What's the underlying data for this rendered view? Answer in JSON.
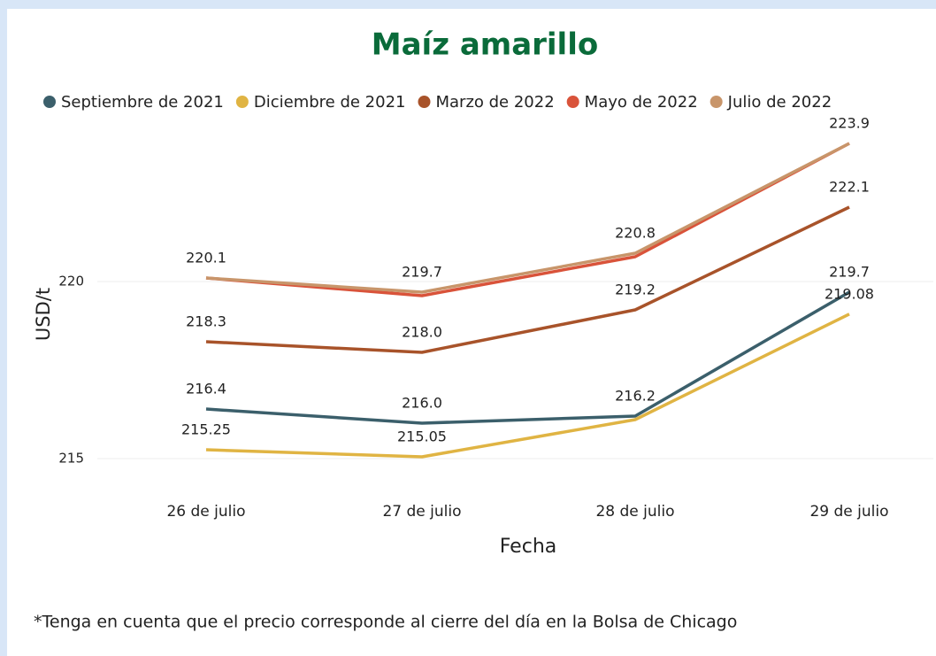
{
  "chart_data": {
    "type": "line",
    "title": "Maíz amarillo",
    "x_label": "Fecha",
    "y_label": "USD/t",
    "categories": [
      "26 de julio",
      "27 de julio",
      "28 de julio",
      "29 de julio"
    ],
    "series": [
      {
        "name": "Septiembre de 2021",
        "color": "#3b5f6b",
        "values": [
          216.4,
          216.0,
          216.2,
          219.7
        ],
        "value_labels": [
          "216.4",
          "216.0",
          "216.2",
          "219.7"
        ]
      },
      {
        "name": "Diciembre de 2021",
        "color": "#e0b443",
        "values": [
          215.25,
          215.05,
          216.1,
          219.08
        ],
        "value_labels": [
          "215.25",
          "215.05",
          null,
          "219.08"
        ]
      },
      {
        "name": "Marzo de 2022",
        "color": "#a8532a",
        "values": [
          218.3,
          218.0,
          219.2,
          222.1
        ],
        "value_labels": [
          "218.3",
          "218.0",
          "219.2",
          "222.1"
        ]
      },
      {
        "name": "Mayo de 2022",
        "color": "#d9533a",
        "values": [
          220.1,
          219.6,
          220.7,
          223.9
        ]
      },
      {
        "name": "Julio de 2022",
        "color": "#c8956a",
        "values": [
          220.1,
          219.7,
          220.8,
          223.9
        ],
        "value_labels": [
          "220.1",
          "219.7",
          "220.8",
          "223.9"
        ]
      }
    ],
    "ylim": [
      214.4,
      224.2
    ],
    "yticks": [
      215,
      220
    ],
    "grid": true,
    "footnote": "*Tenga en cuenta que el precio corresponde al cierre del día en la Bolsa de Chicago"
  }
}
